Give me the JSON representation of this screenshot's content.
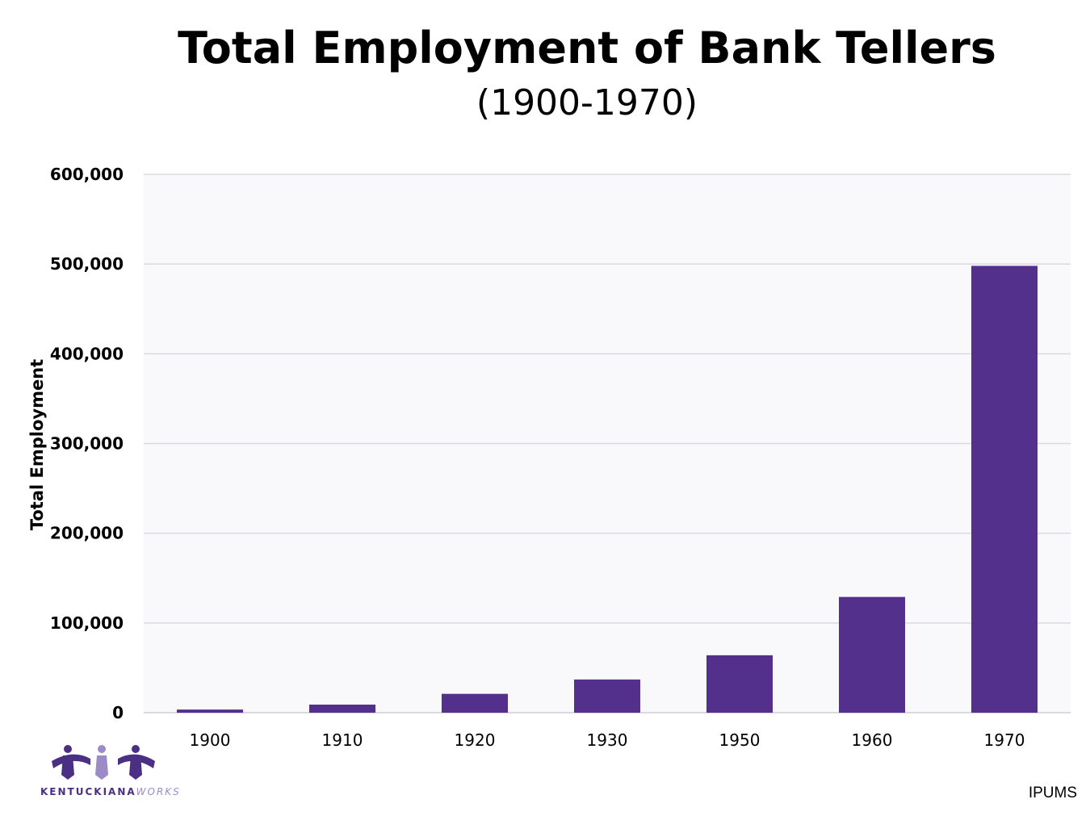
{
  "chart_data": {
    "type": "bar",
    "title": "Total Employment of Bank Tellers",
    "subtitle": "(1900-1970)",
    "xlabel": "",
    "ylabel": "Total Employment",
    "categories": [
      "1900",
      "1910",
      "1920",
      "1930",
      "1950",
      "1960",
      "1970"
    ],
    "values": [
      3500,
      9000,
      21000,
      37000,
      64000,
      129000,
      498000
    ],
    "ylim": [
      0,
      600000
    ],
    "yticks": [
      0,
      100000,
      200000,
      300000,
      400000,
      500000,
      600000
    ],
    "ytick_labels": [
      "0",
      "100,000",
      "200,000",
      "300,000",
      "400,000",
      "500,000",
      "600,000"
    ],
    "grid": true,
    "bar_color": "#53308c",
    "grid_color": "#d9d9e0",
    "source": "IPUMS"
  },
  "logo": {
    "text_main": "KENTUCKIANA",
    "text_accent": "WORKS",
    "color_dark": "#4a2f85",
    "color_light": "#9b8cc7"
  }
}
